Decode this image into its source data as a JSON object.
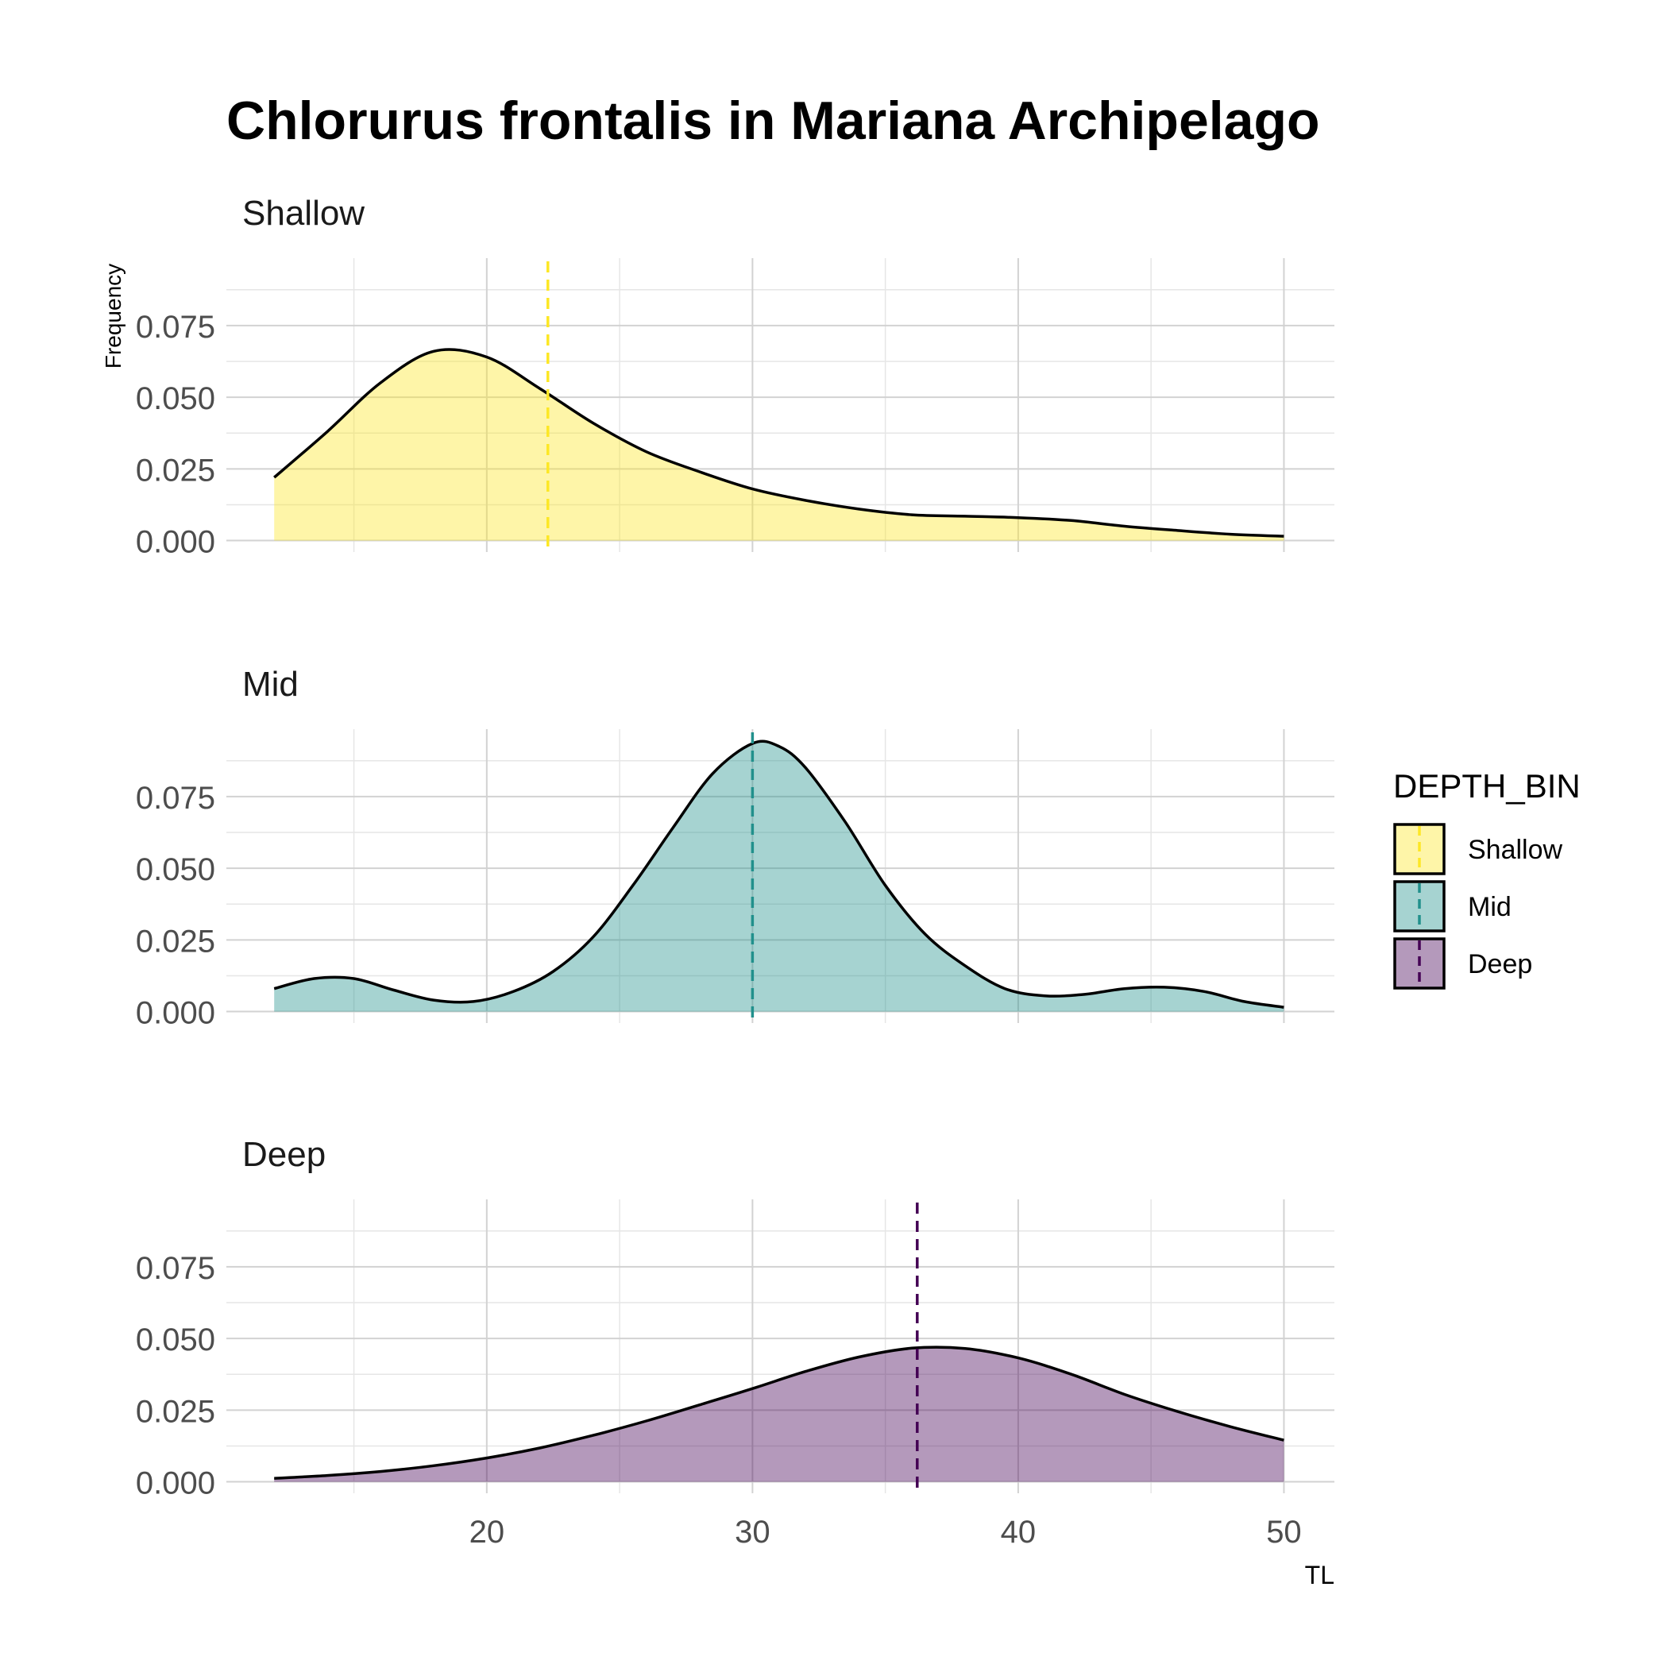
{
  "chart_data": {
    "type": "area",
    "title": "Chlorurus frontalis in Mariana Archipelago",
    "xlabel": "TL",
    "ylabel": "Frequency",
    "xlim": [
      10.2,
      51.9
    ],
    "ylim": [
      -0.004,
      0.0985
    ],
    "x_ticks": [
      20,
      30,
      40,
      50
    ],
    "x_tick_labels": [
      "20",
      "30",
      "40",
      "50"
    ],
    "x_minor_ticks": [
      15,
      25,
      35,
      45
    ],
    "y_ticks": [
      0,
      0.025,
      0.05,
      0.075
    ],
    "y_tick_labels": [
      "0.000",
      "0.025",
      "0.050",
      "0.075"
    ],
    "y_minor_ticks": [
      0.0125,
      0.0375,
      0.0625,
      0.0875
    ],
    "grid": true,
    "legend": {
      "title": "DEPTH_BIN",
      "position": "right",
      "entries": [
        "Shallow",
        "Mid",
        "Deep"
      ]
    },
    "panels": [
      {
        "name": "Shallow",
        "fill": "#FDE725",
        "line_color": "#FDE725",
        "mean": 22.3,
        "x": [
          12,
          14,
          16,
          18,
          20,
          22,
          24,
          26,
          28,
          30,
          32,
          34,
          36,
          38,
          40,
          42,
          44,
          46,
          48,
          50
        ],
        "y": [
          0.022,
          0.038,
          0.055,
          0.066,
          0.064,
          0.053,
          0.041,
          0.031,
          0.024,
          0.018,
          0.014,
          0.011,
          0.009,
          0.0085,
          0.008,
          0.007,
          0.005,
          0.0035,
          0.0022,
          0.0015
        ]
      },
      {
        "name": "Mid",
        "fill": "#21908C",
        "line_color": "#21908C",
        "mean": 30,
        "x": [
          12,
          13.5,
          15,
          16.5,
          18,
          19.5,
          21,
          22.5,
          24,
          25.5,
          27,
          28.5,
          30,
          31,
          32,
          33.5,
          35,
          36.5,
          38,
          39.5,
          41,
          42.5,
          44,
          45.5,
          47,
          48.5,
          50
        ],
        "y": [
          0.008,
          0.0115,
          0.0115,
          0.0075,
          0.004,
          0.0035,
          0.007,
          0.014,
          0.026,
          0.044,
          0.064,
          0.083,
          0.0935,
          0.0925,
          0.085,
          0.066,
          0.044,
          0.027,
          0.016,
          0.008,
          0.0055,
          0.006,
          0.008,
          0.0085,
          0.007,
          0.0035,
          0.0015
        ]
      },
      {
        "name": "Deep",
        "fill": "#440154",
        "line_color": "#440154",
        "mean": 36.2,
        "x": [
          12,
          14,
          16,
          18,
          20,
          22,
          24,
          26,
          28,
          30,
          32,
          34,
          36,
          38,
          40,
          42,
          44,
          46,
          48,
          50
        ],
        "y": [
          0.0012,
          0.0022,
          0.0036,
          0.0056,
          0.0083,
          0.0118,
          0.0162,
          0.0212,
          0.0268,
          0.0325,
          0.0385,
          0.0435,
          0.0466,
          0.0465,
          0.0432,
          0.0375,
          0.0305,
          0.0245,
          0.0192,
          0.0145
        ]
      }
    ]
  }
}
